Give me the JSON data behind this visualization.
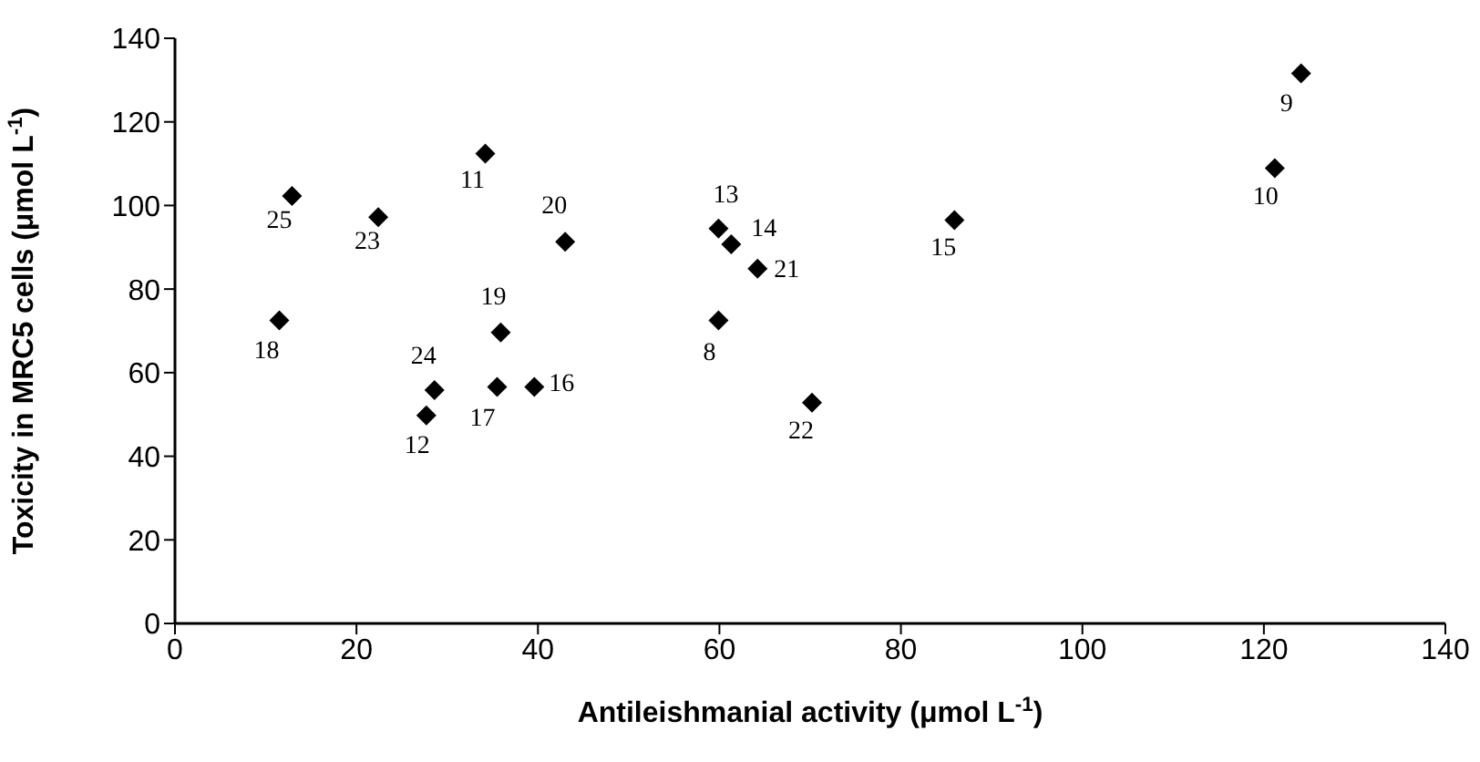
{
  "chart_data": {
    "type": "scatter",
    "xlabel": "Antileishmanial activity (μmol L$^{-1}$)",
    "ylabel": "Toxicity in MRC5 cells (μmol L$^{-1}$)",
    "x": [
      12.9,
      22.4,
      34.2,
      43.0,
      59.9,
      61.3,
      64.2,
      11.5,
      59.9,
      35.9,
      28.6,
      27.7,
      35.5,
      39.6,
      124.1,
      121.2,
      85.9,
      70.2
    ],
    "series": [
      {
        "color": "#000000",
        "values": [
          102.3,
          97.2,
          112.4,
          91.3,
          94.5,
          90.7,
          84.9,
          72.5,
          72.5,
          69.6,
          55.8,
          49.8,
          56.6,
          56.6,
          131.6,
          108.9,
          96.5,
          52.8
        ]
      }
    ],
    "xlim": [
      0,
      140
    ],
    "xticks": [
      0,
      20,
      40,
      60,
      80,
      100,
      120,
      140
    ],
    "ylim": [
      0,
      140
    ],
    "yticks": [
      0,
      20,
      40,
      60,
      80,
      100,
      120,
      140
    ],
    "grid": false,
    "legend": false,
    "marker": "diamond",
    "annotations": [
      {
        "text": "25",
        "x": 12.9,
        "y": 102.3
      },
      {
        "text": "23",
        "x": 22.4,
        "y": 97.2
      },
      {
        "text": "11",
        "x": 34.2,
        "y": 112.4
      },
      {
        "text": "20",
        "x": 43.0,
        "y": 91.3
      },
      {
        "text": "13",
        "x": 59.9,
        "y": 94.5
      },
      {
        "text": "14",
        "x": 61.3,
        "y": 90.7
      },
      {
        "text": "21",
        "x": 64.2,
        "y": 84.9
      },
      {
        "text": "18",
        "x": 11.5,
        "y": 72.5
      },
      {
        "text": "8",
        "x": 59.9,
        "y": 72.5
      },
      {
        "text": "19",
        "x": 35.9,
        "y": 69.6
      },
      {
        "text": "24",
        "x": 28.6,
        "y": 55.8
      },
      {
        "text": "12",
        "x": 27.7,
        "y": 49.8
      },
      {
        "text": "17",
        "x": 35.5,
        "y": 56.6
      },
      {
        "text": "16",
        "x": 39.6,
        "y": 56.6
      },
      {
        "text": "9",
        "x": 124.1,
        "y": 131.6
      },
      {
        "text": "10",
        "x": 121.2,
        "y": 108.9
      },
      {
        "text": "15",
        "x": 85.9,
        "y": 96.5
      },
      {
        "text": "22",
        "x": 70.2,
        "y": 52.8
      }
    ]
  }
}
